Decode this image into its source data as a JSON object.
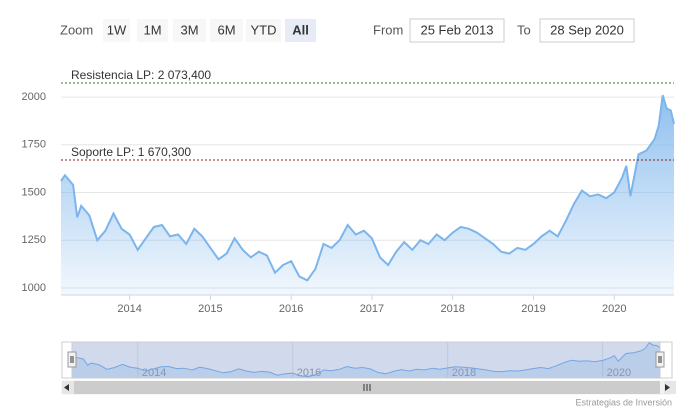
{
  "chart_data": {
    "type": "area",
    "range_selector": {
      "zoom_label": "Zoom",
      "buttons": [
        "1W",
        "1M",
        "3M",
        "6M",
        "YTD",
        "All"
      ],
      "selected": 5,
      "from_label": "From",
      "from_value": "25 Feb 2013",
      "to_label": "To",
      "to_value": "28 Sep 2020"
    },
    "credits": "Estrategias de Inversión",
    "xlim": [
      2013.15,
      2020.74
    ],
    "xticks": [
      2014,
      2015,
      2016,
      2017,
      2018,
      2019,
      2020
    ],
    "ylim": [
      963,
      2168
    ],
    "yticks": [
      1000,
      1250,
      1500,
      1750,
      2000
    ],
    "grid": true,
    "plot_lines": [
      {
        "label": "Resistencia LP: 2 073,400",
        "value": 2073.4,
        "color": "#2e7d32"
      },
      {
        "label": "Soporte LP: 1 670,300",
        "value": 1670.3,
        "color": "#8b1a1a"
      }
    ],
    "navigator_xticks": [
      2014,
      2016,
      2018,
      2020
    ],
    "navigator_ylim": [
      1000,
      2030
    ],
    "series": [
      {
        "color": "#7cb5ec",
        "x": [
          2013.15,
          2013.2,
          2013.3,
          2013.35,
          2013.4,
          2013.5,
          2013.6,
          2013.7,
          2013.8,
          2013.9,
          2014.0,
          2014.1,
          2014.2,
          2014.3,
          2014.4,
          2014.5,
          2014.6,
          2014.7,
          2014.8,
          2014.9,
          2015.0,
          2015.1,
          2015.2,
          2015.3,
          2015.4,
          2015.5,
          2015.6,
          2015.7,
          2015.8,
          2015.9,
          2016.0,
          2016.1,
          2016.2,
          2016.3,
          2016.4,
          2016.5,
          2016.6,
          2016.7,
          2016.8,
          2016.9,
          2017.0,
          2017.1,
          2017.2,
          2017.3,
          2017.4,
          2017.5,
          2017.6,
          2017.7,
          2017.8,
          2017.9,
          2018.0,
          2018.1,
          2018.2,
          2018.3,
          2018.4,
          2018.5,
          2018.6,
          2018.7,
          2018.8,
          2018.9,
          2019.0,
          2019.1,
          2019.2,
          2019.3,
          2019.4,
          2019.5,
          2019.6,
          2019.7,
          2019.8,
          2019.9,
          2020.0,
          2020.1,
          2020.15,
          2020.2,
          2020.3,
          2020.4,
          2020.5,
          2020.55,
          2020.6,
          2020.65,
          2020.7,
          2020.74
        ],
        "values": [
          1560,
          1590,
          1540,
          1370,
          1430,
          1380,
          1250,
          1300,
          1390,
          1310,
          1280,
          1200,
          1260,
          1320,
          1330,
          1270,
          1280,
          1230,
          1310,
          1270,
          1210,
          1150,
          1180,
          1260,
          1200,
          1160,
          1190,
          1170,
          1080,
          1120,
          1140,
          1060,
          1040,
          1100,
          1230,
          1210,
          1250,
          1330,
          1280,
          1300,
          1260,
          1160,
          1120,
          1190,
          1240,
          1200,
          1250,
          1230,
          1280,
          1250,
          1290,
          1320,
          1310,
          1290,
          1260,
          1230,
          1190,
          1180,
          1210,
          1200,
          1230,
          1270,
          1300,
          1270,
          1350,
          1440,
          1510,
          1480,
          1490,
          1470,
          1500,
          1580,
          1640,
          1480,
          1700,
          1720,
          1780,
          1850,
          2010,
          1940,
          1930,
          1860
        ]
      }
    ]
  }
}
